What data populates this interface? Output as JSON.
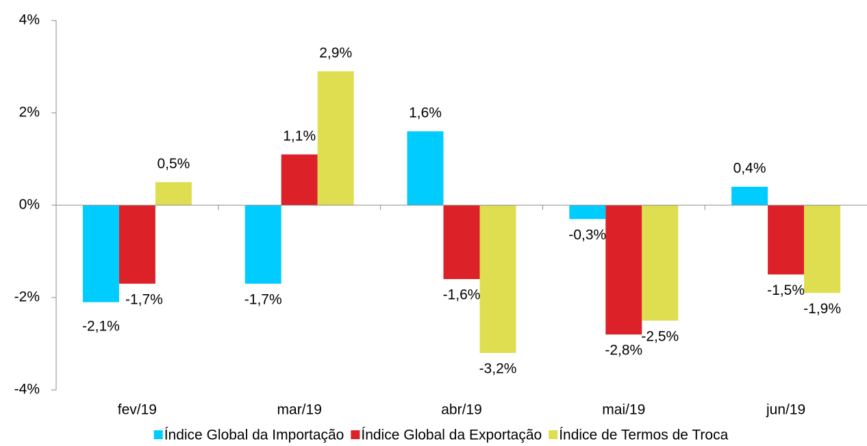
{
  "chart_data": {
    "type": "bar",
    "categories": [
      "fev/19",
      "mar/19",
      "abr/19",
      "mai/19",
      "jun/19"
    ],
    "series": [
      {
        "name": "Índice Global da Importação",
        "color": "#00ccff",
        "values": [
          -2.1,
          -1.7,
          1.6,
          -0.3,
          0.4
        ],
        "value_labels": [
          "-2,1%",
          "-1,7%",
          "1,6%",
          "-0,3%",
          "0,4%"
        ]
      },
      {
        "name": "Índice Global da Exportação",
        "color": "#dc2129",
        "values": [
          -1.7,
          1.1,
          -1.6,
          -2.8,
          -1.5
        ],
        "value_labels": [
          "-1,7%",
          "1,1%",
          "-1,6%",
          "-2,8%",
          "-1,5%"
        ]
      },
      {
        "name": "Índice de Termos de Troca",
        "color": "#dede50",
        "values": [
          0.5,
          2.9,
          -3.2,
          -2.5,
          -1.9
        ],
        "value_labels": [
          "0,5%",
          "2,9%",
          "-3,2%",
          "-2,5%",
          "-1,9%"
        ]
      }
    ],
    "ylim": [
      -4,
      4
    ],
    "yticks": [
      {
        "value": -4,
        "label": "-4%"
      },
      {
        "value": -2,
        "label": "-2%"
      },
      {
        "value": 0,
        "label": "0%"
      },
      {
        "value": 2,
        "label": "2%"
      },
      {
        "value": 4,
        "label": "4%"
      }
    ],
    "legend": "bottom"
  }
}
